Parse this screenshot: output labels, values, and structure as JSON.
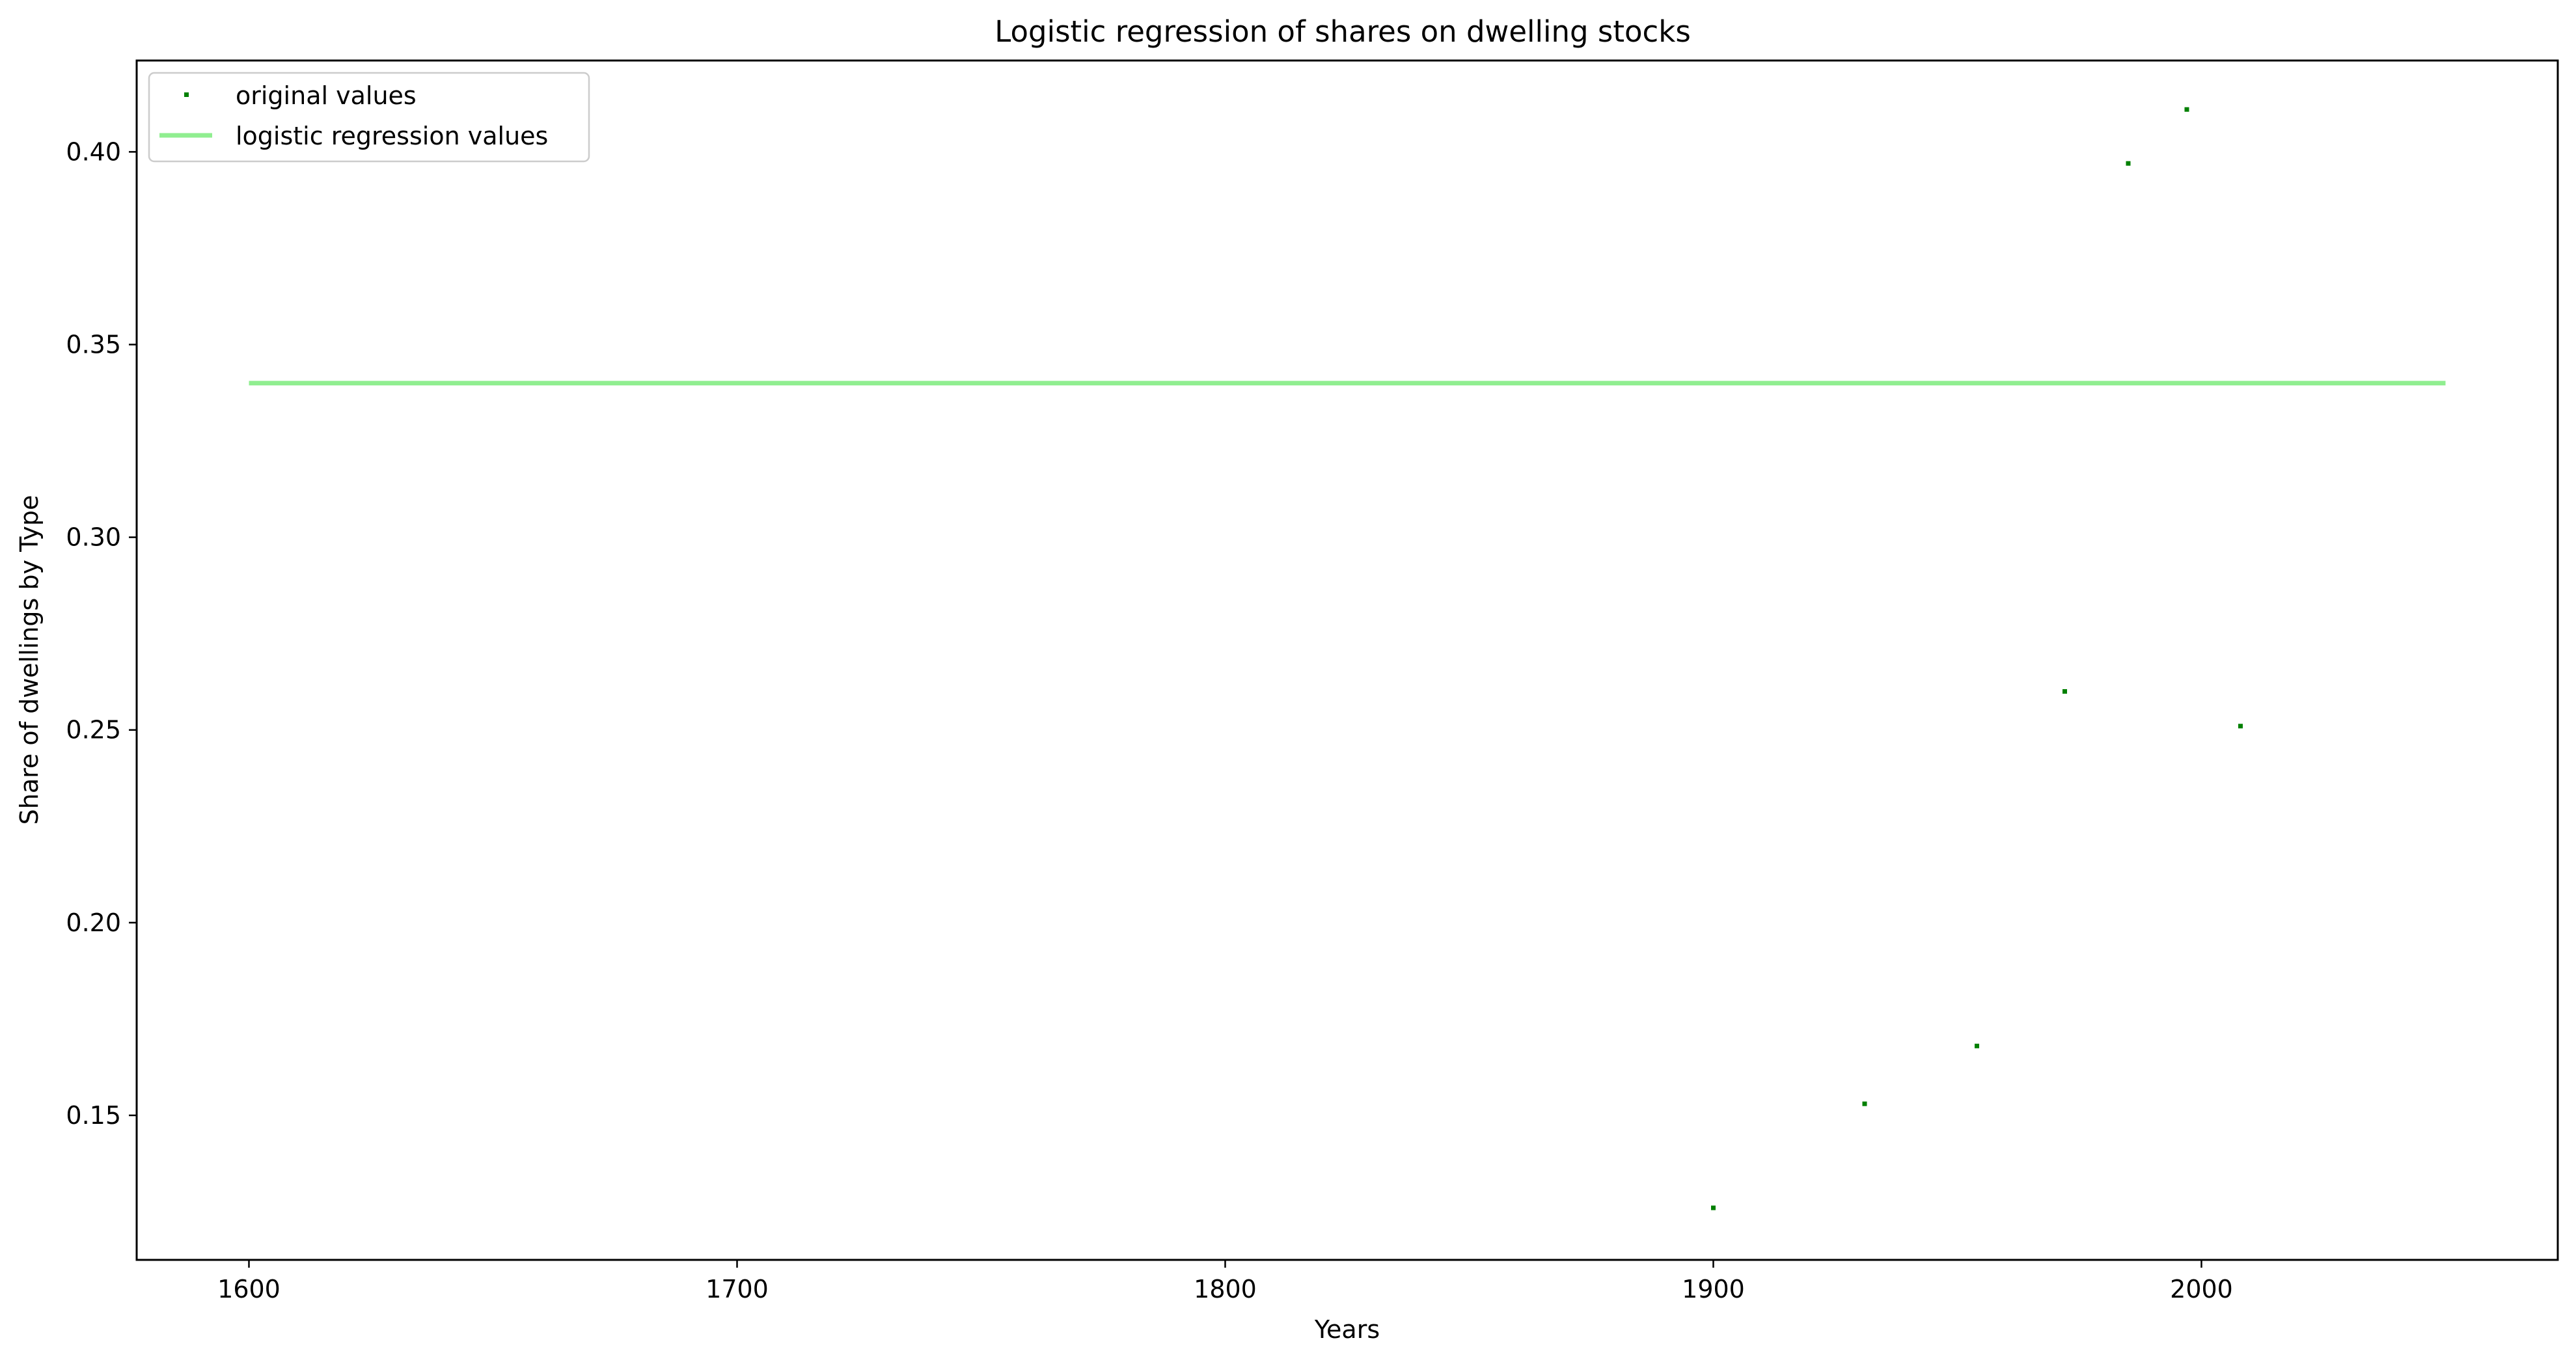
{
  "chart_data": {
    "type": "scatter",
    "title": "Logistic regression of shares on dwelling stocks",
    "xlabel": "Years",
    "ylabel": "Share of dwellings by Type",
    "xlim": [
      1577,
      2073
    ],
    "ylim": [
      0.1125,
      0.4237
    ],
    "xticks": [
      1600,
      1700,
      1800,
      1900,
      2000
    ],
    "yticks": [
      0.15,
      0.2,
      0.25,
      0.3,
      0.35,
      0.4
    ],
    "grid": false,
    "legend_position": "top-left",
    "series": [
      {
        "name": "original values",
        "kind": "scatter",
        "color": "#008000",
        "x": [
          1900,
          1931,
          1954,
          1972,
          1985,
          1997,
          2008
        ],
        "y": [
          0.126,
          0.153,
          0.168,
          0.26,
          0.397,
          0.411,
          0.251
        ]
      },
      {
        "name": "logistic regression values",
        "kind": "line",
        "color": "#90ee90",
        "x": [
          1600,
          2050
        ],
        "y": [
          0.34,
          0.34
        ]
      }
    ]
  }
}
